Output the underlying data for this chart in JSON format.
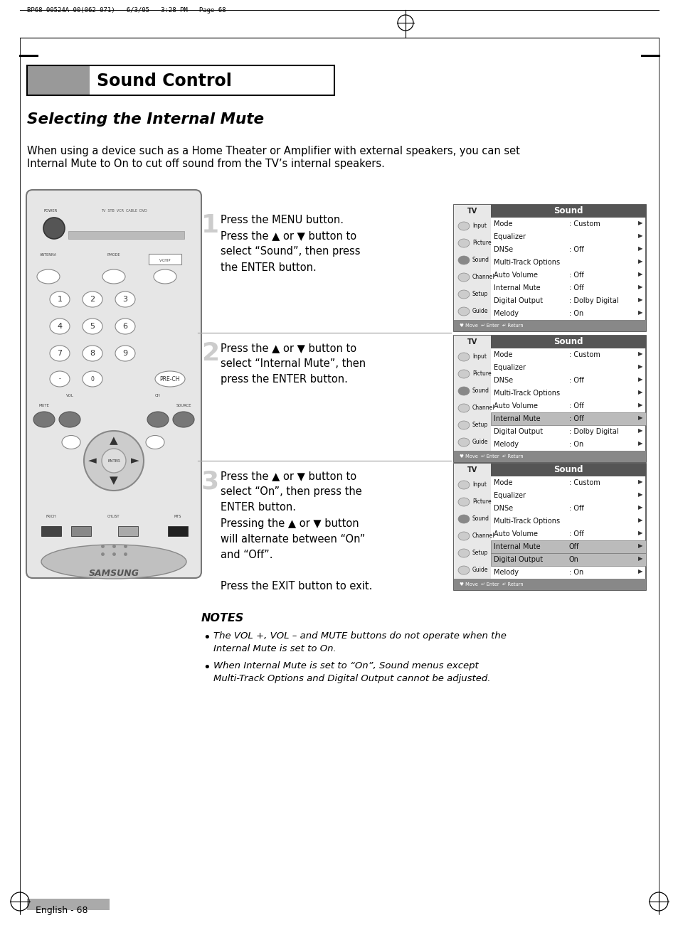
{
  "bg_color": "#ffffff",
  "page_header": "BP68-00524A-00(062-071)   6/3/05   3:28 PM   Page 68",
  "section_title": "Sound Control",
  "subsection_title": "Selecting the Internal Mute",
  "intro_line1": "When using a device such as a Home Theater or Amplifier with external speakers, you can set",
  "intro_line2": "Internal Mute to On to cut off sound from the TV’s internal speakers.",
  "step1_num": "1",
  "step1_text": "Press the MENU button.\nPress the ▲ or ▼ button to\nselect “Sound”, then press\nthe ENTER button.",
  "step2_num": "2",
  "step2_text": "Press the ▲ or ▼ button to\nselect “Internal Mute”, then\npress the ENTER button.",
  "step3_num": "3",
  "step3_text": "Press the ▲ or ▼ button to\nselect “On”, then press the\nENTER button.\nPressing the ▲ or ▼ button\nwill alternate between “On”\nand “Off”.\n\nPress the EXIT button to exit.",
  "notes_title": "NOTES",
  "note1": "The VOL +, VOL – and MUTE buttons do not operate when the\nInternal Mute is set to On.",
  "note2": "When Internal Mute is set to “On”, Sound menus except\nMulti-Track Options and Digital Output cannot be adjusted.",
  "footer_text": "English - 68",
  "menu_items_12": [
    [
      "Mode",
      ": Custom"
    ],
    [
      "Equalizer",
      ""
    ],
    [
      "DNSe",
      ": Off"
    ],
    [
      "Multi-Track Options",
      ""
    ],
    [
      "Auto Volume",
      ": Off"
    ],
    [
      "Internal Mute",
      ": Off"
    ],
    [
      "Digital Output",
      ": Dolby Digital"
    ],
    [
      "Melody",
      ": On"
    ]
  ],
  "menu_items_3": [
    [
      "Mode",
      ": Custom"
    ],
    [
      "Equalizer",
      ""
    ],
    [
      "DNSe",
      ": Off"
    ],
    [
      "Multi-Track Options",
      ""
    ],
    [
      "Auto Volume",
      ": Off"
    ],
    [
      "Internal Mute",
      "Off"
    ],
    [
      "Digital Output",
      "On"
    ],
    [
      "Melody",
      ": On"
    ]
  ],
  "nav_labels": [
    "Input",
    "Picture",
    "Sound",
    "Channel",
    "Setup",
    "Guide"
  ],
  "menu1_highlight": [],
  "menu2_highlight": [
    5
  ],
  "menu3_highlight": [
    5,
    6
  ]
}
